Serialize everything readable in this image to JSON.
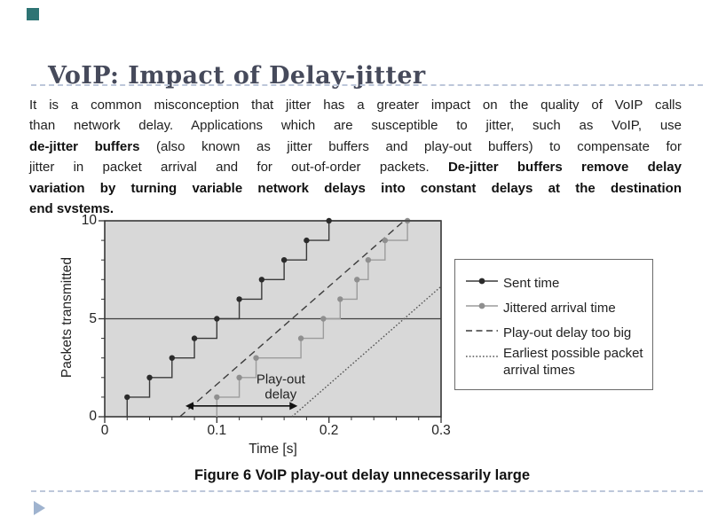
{
  "slide": {
    "title": "VoIP: Impact of Delay-jitter",
    "caption": "Figure 6 VoIP play-out delay unnecessarily large",
    "accent_color": "#2e7474",
    "marker_color": "#9fb3cf"
  },
  "paragraph": {
    "lines": [
      [
        {
          "t": "It is a common misconception that jitter has a greater impact on the quality of VoIP calls",
          "b": false
        }
      ],
      [
        {
          "t": "than network delay. Applications which are susceptible to jitter, such as VoIP, use",
          "b": false
        }
      ],
      [
        {
          "t": "de-jitter buffers",
          "b": true
        },
        {
          "t": " (also known as jitter buffers and play-out buffers) to compensate for",
          "b": false
        }
      ],
      [
        {
          "t": "jitter in packet arrival and for out-of-order packets. ",
          "b": false
        },
        {
          "t": "De-jitter buffers remove delay",
          "b": true
        }
      ],
      [
        {
          "t": "variation by turning variable network delays into constant delays at the destination",
          "b": true
        }
      ],
      [
        {
          "t": "end systems.",
          "b": true
        }
      ]
    ]
  },
  "chart_data": {
    "type": "line",
    "title": "",
    "xlabel": "Time [s]",
    "ylabel": "Packets transmitted",
    "xlim": [
      0,
      0.3
    ],
    "ylim": [
      0,
      10
    ],
    "xticks": {
      "values": [
        0,
        0.1,
        0.2,
        0.3
      ],
      "labels": [
        "0",
        "0.1",
        "0.2",
        "0.3"
      ]
    },
    "yticks": {
      "values": [
        0,
        5,
        10
      ],
      "labels": [
        "0",
        "5",
        "10"
      ]
    },
    "x_minor_ticks": [
      0.02,
      0.04,
      0.06,
      0.08,
      0.12,
      0.14,
      0.16,
      0.18,
      0.22,
      0.24,
      0.26,
      0.28
    ],
    "y_minor_ticks": [
      1,
      2,
      3,
      4,
      6,
      7,
      8,
      9
    ],
    "reference_line_y": 5,
    "grid": false,
    "legend_position": "right",
    "series": [
      {
        "name": "Sent time",
        "type": "step",
        "color": "#3a3a3a",
        "dot_color": "#2b2b2b",
        "x": [
          0.02,
          0.04,
          0.06,
          0.08,
          0.1,
          0.12,
          0.14,
          0.16,
          0.18,
          0.2
        ],
        "y": [
          1,
          2,
          3,
          4,
          5,
          6,
          7,
          8,
          9,
          10
        ]
      },
      {
        "name": "Jittered arrival time",
        "type": "step",
        "color": "#9c9c9c",
        "dot_color": "#8f8f8f",
        "x": [
          0.1,
          0.12,
          0.135,
          0.175,
          0.195,
          0.21,
          0.225,
          0.235,
          0.25,
          0.27
        ],
        "y": [
          1,
          2,
          3,
          4,
          5,
          6,
          7,
          8,
          9,
          10
        ]
      },
      {
        "name": "Play-out delay too big",
        "type": "straight",
        "style": "dashed",
        "color": "#3d3d3d",
        "points": [
          [
            0.067,
            0
          ],
          [
            0.267,
            10
          ]
        ]
      },
      {
        "name": "Earliest possible packet arrival times",
        "type": "straight",
        "style": "dotted",
        "color": "#555555",
        "points": [
          [
            0.167,
            0
          ],
          [
            0.3,
            6.65
          ]
        ]
      }
    ],
    "annotation": {
      "label_lines": [
        "Play-out",
        "delay"
      ],
      "label_pos": [
        0.157,
        1.7
      ],
      "arrow_y": 0.55,
      "arrow_x": [
        0.072,
        0.172
      ]
    },
    "colors": {
      "plot_bg": "#d8d8d8",
      "border": "#2b2b2b",
      "reference_line": "#3f3f3f",
      "tick": "#333333",
      "annotation_text": "#222222"
    }
  }
}
